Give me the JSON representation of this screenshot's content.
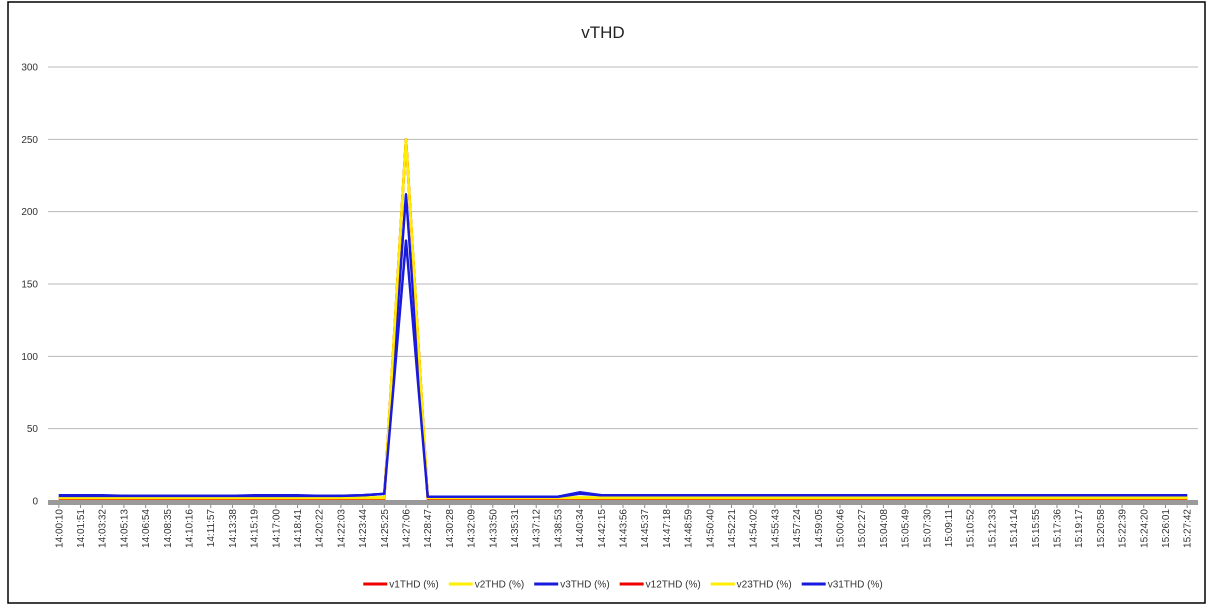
{
  "chart_data": {
    "type": "line",
    "title": "vTHD",
    "categories": [
      "14:00:10",
      "14:01:51",
      "14:03:32",
      "14:05:13",
      "14:06:54",
      "14:08:35",
      "14:10:16",
      "14:11:57",
      "14:13:38",
      "14:15:19",
      "14:17:00",
      "14:18:41",
      "14:20:22",
      "14:22:03",
      "14:23:44",
      "14:25:25",
      "14:27:06",
      "14:28:47",
      "14:30:28",
      "14:32:09",
      "14:33:50",
      "14:35:31",
      "14:37:12",
      "14:38:53",
      "14:40:34",
      "14:42:15",
      "14:43:56",
      "14:45:37",
      "14:47:18",
      "14:48:59",
      "14:50:40",
      "14:52:21",
      "14:54:02",
      "14:55:43",
      "14:57:24",
      "14:59:05",
      "15:00:46",
      "15:02:27",
      "15:04:08",
      "15:05:49",
      "15:07:30",
      "15:09:11",
      "15:10:52",
      "15:12:33",
      "15:14:14",
      "15:15:55",
      "15:17:36",
      "15:19:17",
      "15:20:58",
      "15:22:39",
      "15:24:20",
      "15:26:01",
      "15:27:42"
    ],
    "series": [
      {
        "name": "v1THD (%)",
        "color": "#ee0000",
        "values": [
          2,
          2,
          2,
          2,
          2,
          2,
          2,
          2,
          2,
          2,
          2,
          2,
          2,
          2,
          2,
          2,
          250,
          2,
          2,
          2,
          2,
          2,
          2,
          2,
          2,
          2,
          2,
          2,
          2,
          2,
          2,
          2,
          2,
          2,
          2,
          2,
          2,
          2,
          2,
          2,
          2,
          2,
          2,
          2,
          2,
          2,
          2,
          2,
          2,
          2,
          2,
          2,
          2
        ]
      },
      {
        "name": "v2THD (%)",
        "color": "#ffee00",
        "values": [
          2.5,
          2.5,
          2.5,
          2.5,
          2.5,
          2.5,
          2.5,
          2.5,
          2.5,
          2.5,
          2.5,
          2.5,
          2.5,
          2.5,
          2.5,
          2.5,
          250,
          2.5,
          2.5,
          2.5,
          2.5,
          2.5,
          2.5,
          2.5,
          2.5,
          2.5,
          2.5,
          2.5,
          2.5,
          2.5,
          2.5,
          2.5,
          2.5,
          2.5,
          2.5,
          2.5,
          2.5,
          2.5,
          2.5,
          2.5,
          2.5,
          2.5,
          2.5,
          2.5,
          2.5,
          2.5,
          2.5,
          2.5,
          2.5,
          2.5,
          2.5,
          2.5,
          2.5
        ]
      },
      {
        "name": "v3THD (%)",
        "color": "#1a1adc",
        "values": [
          4,
          4,
          4,
          3.5,
          3.5,
          3.5,
          3.5,
          3.5,
          3.5,
          4,
          4,
          4,
          3.5,
          3.5,
          4,
          5,
          212,
          3,
          3,
          3,
          3,
          3,
          3,
          3,
          6,
          4,
          4,
          4,
          4,
          4,
          4,
          4,
          4,
          4,
          4,
          4,
          4,
          4,
          4,
          4,
          4,
          4,
          4,
          4,
          4,
          4,
          4,
          4,
          4,
          4,
          4,
          4,
          4
        ]
      },
      {
        "name": "v12THD (%)",
        "color": "#ee0000",
        "values": [
          1.5,
          1.5,
          1.5,
          1.5,
          1.5,
          1.5,
          1.5,
          1.5,
          1.5,
          1.5,
          1.5,
          1.5,
          1.5,
          1.5,
          1.5,
          1.5,
          250,
          1.5,
          1.5,
          1.5,
          1.5,
          1.5,
          1.5,
          1.5,
          1.5,
          1.5,
          1.5,
          1.5,
          1.5,
          1.5,
          1.5,
          1.5,
          1.5,
          1.5,
          1.5,
          1.5,
          1.5,
          1.5,
          1.5,
          1.5,
          1.5,
          1.5,
          1.5,
          1.5,
          1.5,
          1.5,
          1.5,
          1.5,
          1.5,
          1.5,
          1.5,
          1.5,
          1.5
        ]
      },
      {
        "name": "v23THD (%)",
        "color": "#ffee00",
        "values": [
          2,
          2,
          2,
          2,
          2,
          2,
          2,
          2,
          2,
          2,
          2,
          2,
          2,
          2,
          2,
          2,
          250,
          2,
          2,
          2,
          2,
          2,
          2,
          2,
          2,
          2,
          2,
          2,
          2,
          2,
          2,
          2,
          2,
          2,
          2,
          2,
          2,
          2,
          2,
          2,
          2,
          2,
          2,
          2,
          2,
          2,
          2,
          2,
          2,
          2,
          2,
          2,
          2
        ]
      },
      {
        "name": "v31THD (%)",
        "color": "#1a1adc",
        "values": [
          3.5,
          3.5,
          3.5,
          3.5,
          3.5,
          3.5,
          3.5,
          3.5,
          3.5,
          3.5,
          3.5,
          3.5,
          3.5,
          3.5,
          4,
          5,
          180,
          3,
          3,
          3,
          3,
          3,
          3,
          3,
          5,
          4,
          4,
          4,
          4,
          4,
          4,
          4,
          4,
          4,
          4,
          4,
          4,
          4,
          4,
          4,
          4,
          4,
          4,
          4,
          4,
          4,
          4,
          4,
          4,
          4,
          4,
          4,
          4
        ]
      }
    ],
    "ylim": [
      0,
      300
    ],
    "yticks": [
      0,
      50,
      100,
      150,
      200,
      250,
      300
    ],
    "grid": true,
    "legend": "bottom"
  }
}
